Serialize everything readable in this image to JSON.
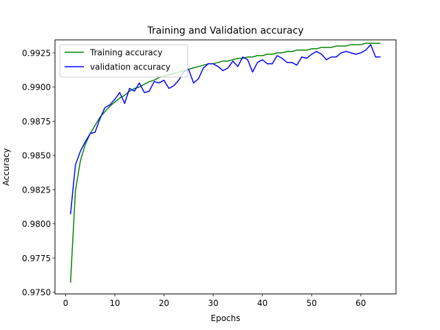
{
  "chart_data": {
    "type": "line",
    "title": "Training and Validation accuracy",
    "xlabel": "Epochs",
    "ylabel": "Accuracy",
    "xlim": [
      -2.15,
      67.15
    ],
    "ylim": [
      0.97487,
      0.99345
    ],
    "xticks": [
      0,
      10,
      20,
      30,
      40,
      50,
      60
    ],
    "xtick_labels": [
      "0",
      "10",
      "20",
      "30",
      "40",
      "50",
      "60"
    ],
    "yticks": [
      0.975,
      0.9775,
      0.98,
      0.9825,
      0.985,
      0.9875,
      0.99,
      0.9925
    ],
    "ytick_labels": [
      "0.9750",
      "0.9775",
      "0.9800",
      "0.9825",
      "0.9850",
      "0.9875",
      "0.9900",
      "0.9925"
    ],
    "grid": false,
    "legend_position": "top-left",
    "x": [
      1,
      2,
      3,
      4,
      5,
      6,
      7,
      8,
      9,
      10,
      11,
      12,
      13,
      14,
      15,
      16,
      17,
      18,
      19,
      20,
      21,
      22,
      23,
      24,
      25,
      26,
      27,
      28,
      29,
      30,
      31,
      32,
      33,
      34,
      35,
      36,
      37,
      38,
      39,
      40,
      41,
      42,
      43,
      44,
      45,
      46,
      47,
      48,
      49,
      50,
      51,
      52,
      53,
      54,
      55,
      56,
      57,
      58,
      59,
      60,
      61,
      62,
      63,
      64
    ],
    "series": [
      {
        "name": "Training accuracy",
        "color": "#008000",
        "values": [
          0.9757,
          0.9824,
          0.9846,
          0.9858,
          0.9866,
          0.9872,
          0.9878,
          0.9882,
          0.9886,
          0.9889,
          0.9892,
          0.9894,
          0.9897,
          0.9899,
          0.99,
          0.9902,
          0.9904,
          0.9905,
          0.9907,
          0.9908,
          0.9909,
          0.991,
          0.9911,
          0.9912,
          0.9913,
          0.9914,
          0.9915,
          0.9916,
          0.9917,
          0.9917,
          0.9918,
          0.9919,
          0.9919,
          0.992,
          0.9921,
          0.9921,
          0.9922,
          0.9922,
          0.9923,
          0.9923,
          0.9924,
          0.9924,
          0.9925,
          0.9925,
          0.9926,
          0.9926,
          0.9927,
          0.9927,
          0.9927,
          0.9928,
          0.9928,
          0.9929,
          0.9929,
          0.9929,
          0.993,
          0.993,
          0.993,
          0.9931,
          0.9931,
          0.9931,
          0.9932,
          0.9932,
          0.9932,
          0.9932
        ]
      },
      {
        "name": "validation accuracy",
        "color": "#0000ff",
        "values": [
          0.9807,
          0.9843,
          0.9853,
          0.986,
          0.9866,
          0.9867,
          0.9877,
          0.9885,
          0.9887,
          0.9891,
          0.9896,
          0.9888,
          0.9899,
          0.9897,
          0.9903,
          0.9896,
          0.9897,
          0.9904,
          0.9903,
          0.9905,
          0.9899,
          0.9901,
          0.9905,
          0.9911,
          0.9913,
          0.9903,
          0.9906,
          0.9914,
          0.9917,
          0.9917,
          0.9915,
          0.9912,
          0.9914,
          0.9919,
          0.9915,
          0.9922,
          0.992,
          0.9911,
          0.9918,
          0.992,
          0.9917,
          0.9917,
          0.9923,
          0.9921,
          0.9918,
          0.9918,
          0.9916,
          0.9922,
          0.9921,
          0.9924,
          0.9926,
          0.9924,
          0.992,
          0.9922,
          0.9922,
          0.9925,
          0.9926,
          0.9925,
          0.9924,
          0.9925,
          0.9927,
          0.9931,
          0.9922,
          0.9922
        ]
      }
    ]
  }
}
